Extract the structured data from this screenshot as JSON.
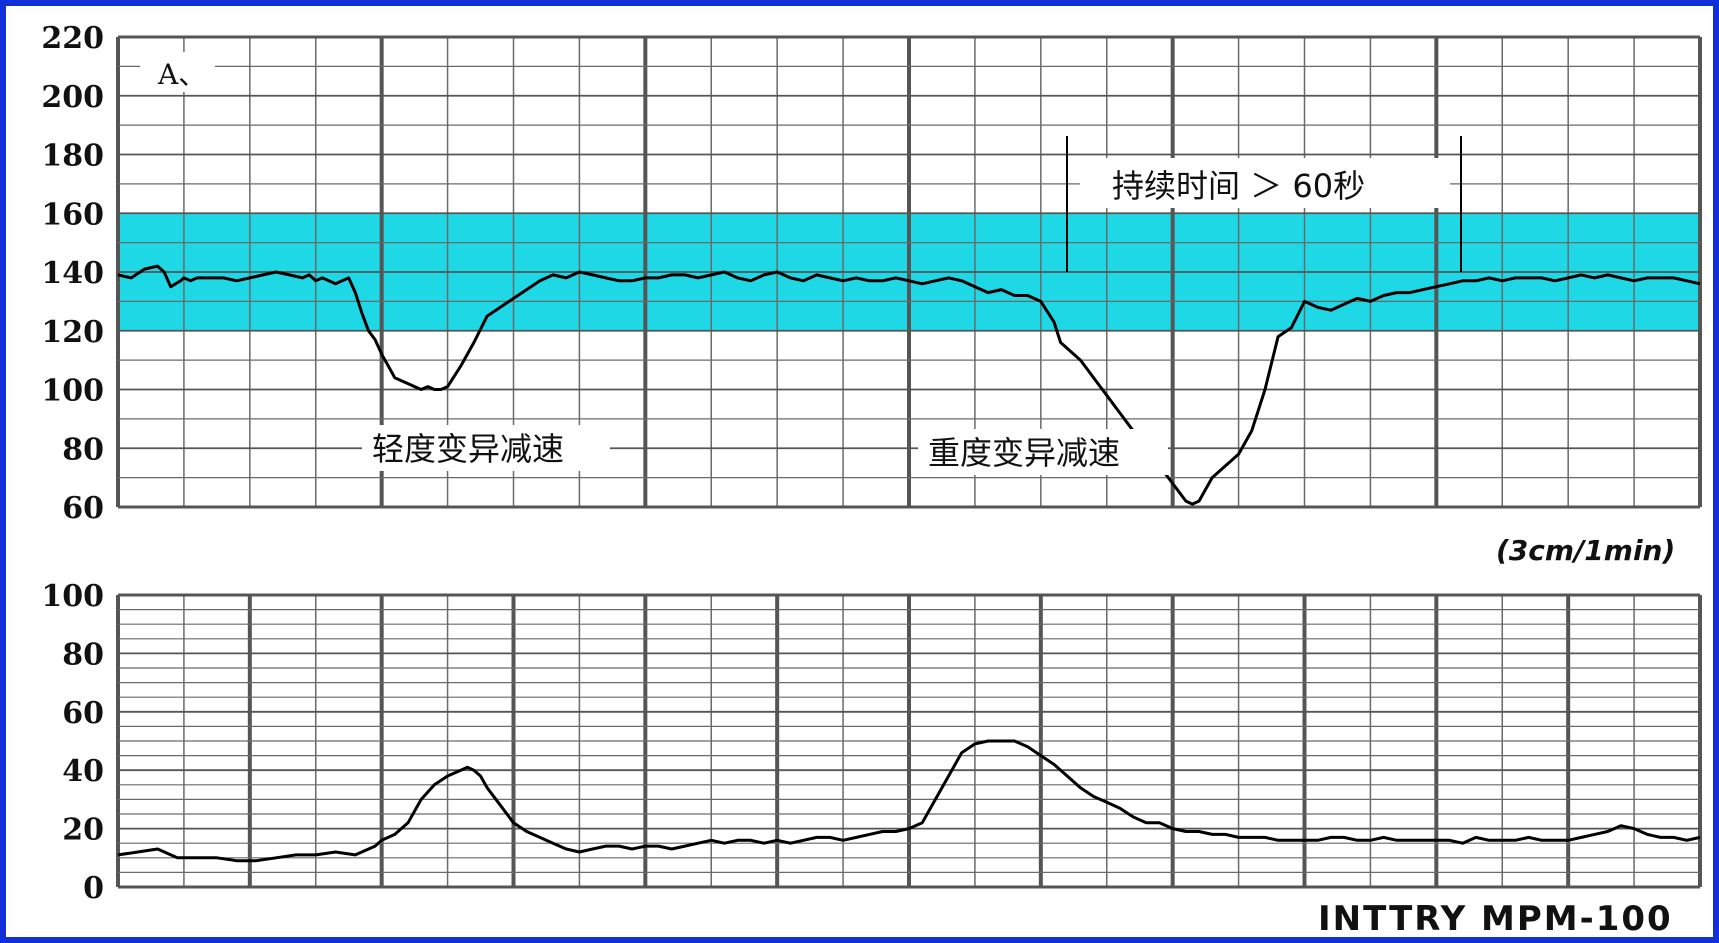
{
  "colors": {
    "frame": "#1230d8",
    "band": "#1fd8e6",
    "grid": "#6a6a6a",
    "trace": "#000000"
  },
  "labels": {
    "panel_mark": "A、",
    "mild": "轻度变异减速",
    "severe": "重度变异减速",
    "duration": "持续时间 ＞ 60秒",
    "speed": "(3cm/1min)",
    "model": "INTTRY  MPM-100"
  },
  "chart_data": [
    {
      "type": "line",
      "series": [
        {
          "x": [
            0,
            2,
            4,
            6,
            7,
            8,
            9.5,
            10,
            11,
            12,
            14,
            16,
            18,
            20,
            22,
            24,
            26,
            28,
            29,
            30,
            31,
            32,
            33,
            34,
            35,
            36,
            37,
            38,
            39,
            40,
            41,
            42,
            43,
            44,
            45,
            46,
            47,
            48,
            49,
            50,
            52,
            54,
            56,
            58,
            60,
            62,
            64,
            66,
            68,
            70,
            72,
            74,
            76,
            78,
            80,
            82,
            84,
            86,
            88,
            90,
            92,
            94,
            96,
            98,
            100,
            102,
            104,
            106,
            108,
            110,
            112,
            114,
            116,
            118,
            120,
            122,
            124,
            126,
            128,
            130,
            132,
            134,
            136,
            138,
            140,
            142,
            143,
            144,
            145,
            146,
            147,
            148,
            149,
            150,
            151,
            152,
            153,
            154,
            155,
            156,
            157,
            158,
            159,
            160,
            161,
            162,
            163,
            164,
            165,
            166,
            167,
            168,
            169,
            170,
            172,
            174,
            176,
            178,
            180,
            182,
            184,
            186,
            188,
            190,
            192,
            194,
            196,
            198,
            200,
            202,
            204,
            206,
            208,
            210,
            212,
            214,
            216,
            218,
            220,
            222,
            224,
            226,
            228,
            230,
            232,
            234,
            236,
            238,
            240
          ],
          "values": [
            139,
            138,
            141,
            142,
            140,
            135,
            137,
            138,
            137,
            138,
            138,
            138,
            137,
            138,
            139,
            140,
            139,
            138,
            139,
            137,
            138,
            137,
            136,
            137,
            138,
            133,
            126,
            120,
            117,
            112,
            108,
            104,
            103,
            102,
            101,
            100,
            101,
            100,
            100,
            101,
            108,
            116,
            125,
            128,
            131,
            134,
            137,
            139,
            138,
            140,
            139,
            138,
            137,
            137,
            138,
            138,
            139,
            139,
            138,
            139,
            140,
            138,
            137,
            139,
            140,
            138,
            137,
            139,
            138,
            137,
            138,
            137,
            137,
            138,
            137,
            136,
            137,
            138,
            137,
            135,
            133,
            134,
            132,
            132,
            130,
            123,
            116,
            114,
            112,
            110,
            107,
            104,
            101,
            98,
            95,
            92,
            89,
            86,
            83,
            80,
            77,
            74,
            71,
            68,
            65,
            62,
            61,
            62,
            66,
            70,
            72,
            74,
            76,
            78,
            86,
            100,
            118,
            121,
            130,
            128,
            127,
            129,
            131,
            130,
            132,
            133,
            133,
            134,
            135,
            136,
            137,
            137,
            138,
            137,
            138,
            138,
            138,
            137,
            138,
            139,
            138,
            139,
            138,
            137,
            138,
            138,
            138,
            137,
            136
          ]
        }
      ],
      "xlim": [
        0,
        240
      ],
      "ylim": [
        60,
        220
      ],
      "yticks": [
        60,
        80,
        100,
        120,
        140,
        160,
        180,
        200,
        220
      ],
      "band": [
        120,
        160
      ],
      "grid": true
    },
    {
      "type": "line",
      "series": [
        {
          "x": [
            0,
            3,
            6,
            9,
            12,
            15,
            18,
            21,
            24,
            27,
            30,
            33,
            36,
            39,
            40,
            42,
            44,
            46,
            48,
            50,
            52,
            53,
            54,
            55,
            56,
            58,
            60,
            62,
            64,
            66,
            68,
            70,
            72,
            74,
            76,
            78,
            80,
            82,
            84,
            86,
            88,
            90,
            92,
            94,
            96,
            98,
            100,
            102,
            104,
            106,
            108,
            110,
            112,
            114,
            116,
            118,
            120,
            122,
            124,
            126,
            128,
            130,
            132,
            134,
            136,
            138,
            140,
            142,
            144,
            146,
            148,
            150,
            152,
            154,
            156,
            158,
            160,
            162,
            164,
            166,
            168,
            170,
            172,
            174,
            176,
            178,
            180,
            182,
            184,
            186,
            188,
            190,
            192,
            194,
            196,
            198,
            200,
            202,
            204,
            206,
            208,
            210,
            212,
            214,
            216,
            218,
            220,
            222,
            224,
            226,
            228,
            230,
            232,
            234,
            236,
            238,
            240
          ],
          "values": [
            11,
            12,
            13,
            10,
            10,
            10,
            9,
            9,
            10,
            11,
            11,
            12,
            11,
            14,
            16,
            18,
            22,
            30,
            35,
            38,
            40,
            41,
            40,
            38,
            34,
            28,
            22,
            19,
            17,
            15,
            13,
            12,
            13,
            14,
            14,
            13,
            14,
            14,
            13,
            14,
            15,
            16,
            15,
            16,
            16,
            15,
            16,
            15,
            16,
            17,
            17,
            16,
            17,
            18,
            19,
            19,
            20,
            22,
            30,
            38,
            46,
            49,
            50,
            50,
            50,
            48,
            45,
            42,
            38,
            34,
            31,
            29,
            27,
            24,
            22,
            22,
            20,
            19,
            19,
            18,
            18,
            17,
            17,
            17,
            16,
            16,
            16,
            16,
            17,
            17,
            16,
            16,
            17,
            16,
            16,
            16,
            16,
            16,
            15,
            17,
            16,
            16,
            16,
            17,
            16,
            16,
            16,
            17,
            18,
            19,
            21,
            20,
            18,
            17,
            17,
            16,
            17
          ]
        }
      ],
      "xlim": [
        0,
        240
      ],
      "ylim": [
        0,
        100
      ],
      "yticks": [
        0,
        20,
        40,
        60,
        80,
        100
      ],
      "grid": true
    }
  ]
}
